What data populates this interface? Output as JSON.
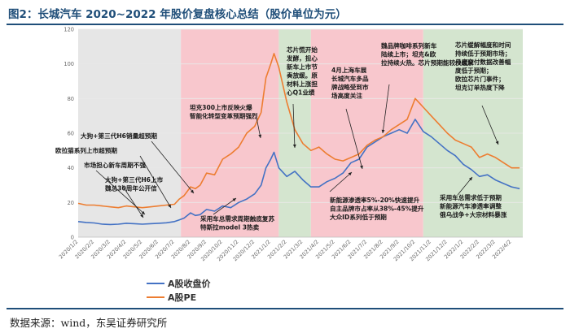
{
  "title": "图2：长城汽车 2020~2022 年股价复盘核心总结（股价单位为元）",
  "source": "数据来源：wind，东吴证券研究所",
  "colors": {
    "price": "#4472c4",
    "pe": "#ed7d31",
    "gray": "#e6e6e6",
    "red": "#f8c7cd",
    "green": "#d4e5cf",
    "title": "#1f4e79"
  },
  "chart_data": {
    "type": "line",
    "ylim": [
      0,
      120
    ],
    "yticks": [
      0,
      20,
      40,
      60,
      80,
      100,
      120
    ],
    "x_tick_labels": [
      "2020/1/2",
      "2020/2/2",
      "2020/3/2",
      "2020/4/2",
      "2020/5/2",
      "2020/6/2",
      "2020/7/2",
      "2020/8/2",
      "2020/9/2",
      "2020/10/2",
      "2020/11/2",
      "2020/12/2",
      "2021/1/2",
      "2021/2/2",
      "2021/3/2",
      "2021/4/2",
      "2021/5/2",
      "2021/6/2",
      "2021/7/2",
      "2021/8/2",
      "2021/9/2",
      "2021/10/2",
      "2021/11/2",
      "2021/12/2",
      "2022/1/2",
      "2022/2/2",
      "2022/3/2",
      "2022/4/2"
    ],
    "series": [
      {
        "name": "A股收盘价",
        "color": "#4472c4",
        "x": [
          0,
          0.5,
          1,
          1.5,
          2,
          2.5,
          3,
          3.5,
          4,
          4.5,
          5,
          5.5,
          6,
          6.3,
          6.6,
          7,
          7.3,
          7.6,
          8,
          8.5,
          9,
          9.5,
          10,
          10.5,
          11,
          11.4,
          11.7,
          12,
          12.2,
          12.5,
          13,
          13.5,
          14,
          14.5,
          15,
          15.5,
          16,
          16.5,
          17,
          17.5,
          18,
          18.5,
          19,
          19.5,
          20,
          20.5,
          21,
          21.5,
          22,
          22.5,
          23,
          23.5,
          24,
          24.5,
          25,
          25.5,
          26,
          26.5,
          27,
          27.5
        ],
        "values": [
          9,
          8.5,
          8.2,
          7.5,
          7.3,
          7.5,
          8,
          7.8,
          7.5,
          7.8,
          8,
          8.3,
          9,
          10,
          11,
          14,
          12.5,
          13,
          16,
          15,
          18,
          17,
          20,
          22,
          25,
          30,
          40,
          45,
          49,
          40,
          35,
          38,
          33,
          29,
          29,
          32,
          34,
          37,
          43,
          45,
          52,
          55,
          58,
          60,
          62,
          60,
          68,
          61,
          58,
          54,
          50,
          47,
          42,
          39,
          35,
          36,
          33,
          31,
          29,
          28
        ]
      },
      {
        "name": "A股PE",
        "color": "#ed7d31",
        "x": [
          0,
          0.5,
          1,
          1.5,
          2,
          2.5,
          3,
          3.5,
          4,
          4.5,
          5,
          5.5,
          6,
          6.3,
          6.6,
          7,
          7.3,
          7.6,
          8,
          8.5,
          9,
          9.5,
          10,
          10.5,
          11,
          11.4,
          11.7,
          12,
          12.2,
          12.5,
          13,
          13.5,
          14,
          14.5,
          15,
          15.5,
          16,
          16.5,
          17,
          17.5,
          18,
          18.5,
          19,
          19.5,
          20,
          20.5,
          21,
          21.5,
          22,
          22.5,
          23,
          23.5,
          24,
          24.5,
          25,
          25.5,
          26,
          26.5,
          27,
          27.5
        ],
        "values": [
          19.5,
          18.5,
          18.5,
          18,
          17.5,
          17,
          18,
          17.5,
          17,
          17.5,
          18,
          18.5,
          19,
          22,
          24,
          29,
          28,
          30,
          37,
          36,
          45,
          48,
          52,
          60,
          64,
          72,
          92,
          100,
          106,
          98,
          78,
          62,
          54,
          50,
          52,
          48,
          45,
          44,
          46,
          48,
          53,
          56,
          58,
          62,
          65,
          68,
          80,
          75,
          70,
          65,
          60,
          56,
          54,
          52,
          46,
          48,
          46,
          43,
          40,
          40
        ]
      }
    ]
  },
  "phases": [
    {
      "start": 0,
      "end": 6.4,
      "type": "gray"
    },
    {
      "start": 6.4,
      "end": 12.5,
      "type": "red"
    },
    {
      "start": 12.5,
      "end": 14.5,
      "type": "green"
    },
    {
      "start": 14.5,
      "end": 21.5,
      "type": "red"
    },
    {
      "start": 21.5,
      "end": 27.7,
      "type": "green"
    }
  ],
  "annotations": [
    {
      "lines": [
        "大狗+第三代H6上市",
        "魏总30周年公开信"
      ]
    },
    {
      "lines": [
        "市场担心新车周期不强"
      ]
    },
    {
      "lines": [
        "欧拉猫系列上市超预期"
      ]
    },
    {
      "lines": [
        "大狗+第三代H6销量超预期"
      ]
    },
    {
      "lines": [
        "坦克300上市反映火爆",
        "智能化转型变革预期强烈"
      ]
    },
    {
      "lines": [
        "采用车总需求周期触底复苏",
        "特斯拉model 3热卖"
      ]
    },
    {
      "lines": [
        "芯片慌开始",
        "发酵，担心",
        "新车上市节",
        "奏放缓。原",
        "材料上涨担",
        "心Q1业绩"
      ]
    },
    {
      "lines": [
        "4月上海车展",
        "长城汽车多品",
        "牌战略受到市",
        "场高度关注"
      ]
    },
    {
      "lines": [
        "魏品牌咖啡系列新车",
        "陆续上市；坦克&欧",
        "拉持续火热。芯片预期能较快缓解"
      ]
    },
    {
      "lines": [
        "新能源渗透率5%-20%快速提升",
        "自主品牌市占率从38%-45%提升",
        "大众ID系列低于预期"
      ]
    },
    {
      "lines": [
        "芯片缓解幅度和时间",
        "持续低于预期市场；",
        "月度交付数据改善幅",
        "度低于预期；",
        "欧拉芯片门事件；",
        "坦克订单热度下降"
      ]
    },
    {
      "lines": [
        "采用车总需求低于预期",
        "新能源汽车渗透率调整",
        "俄乌战争+大宗材料暴涨"
      ]
    }
  ]
}
